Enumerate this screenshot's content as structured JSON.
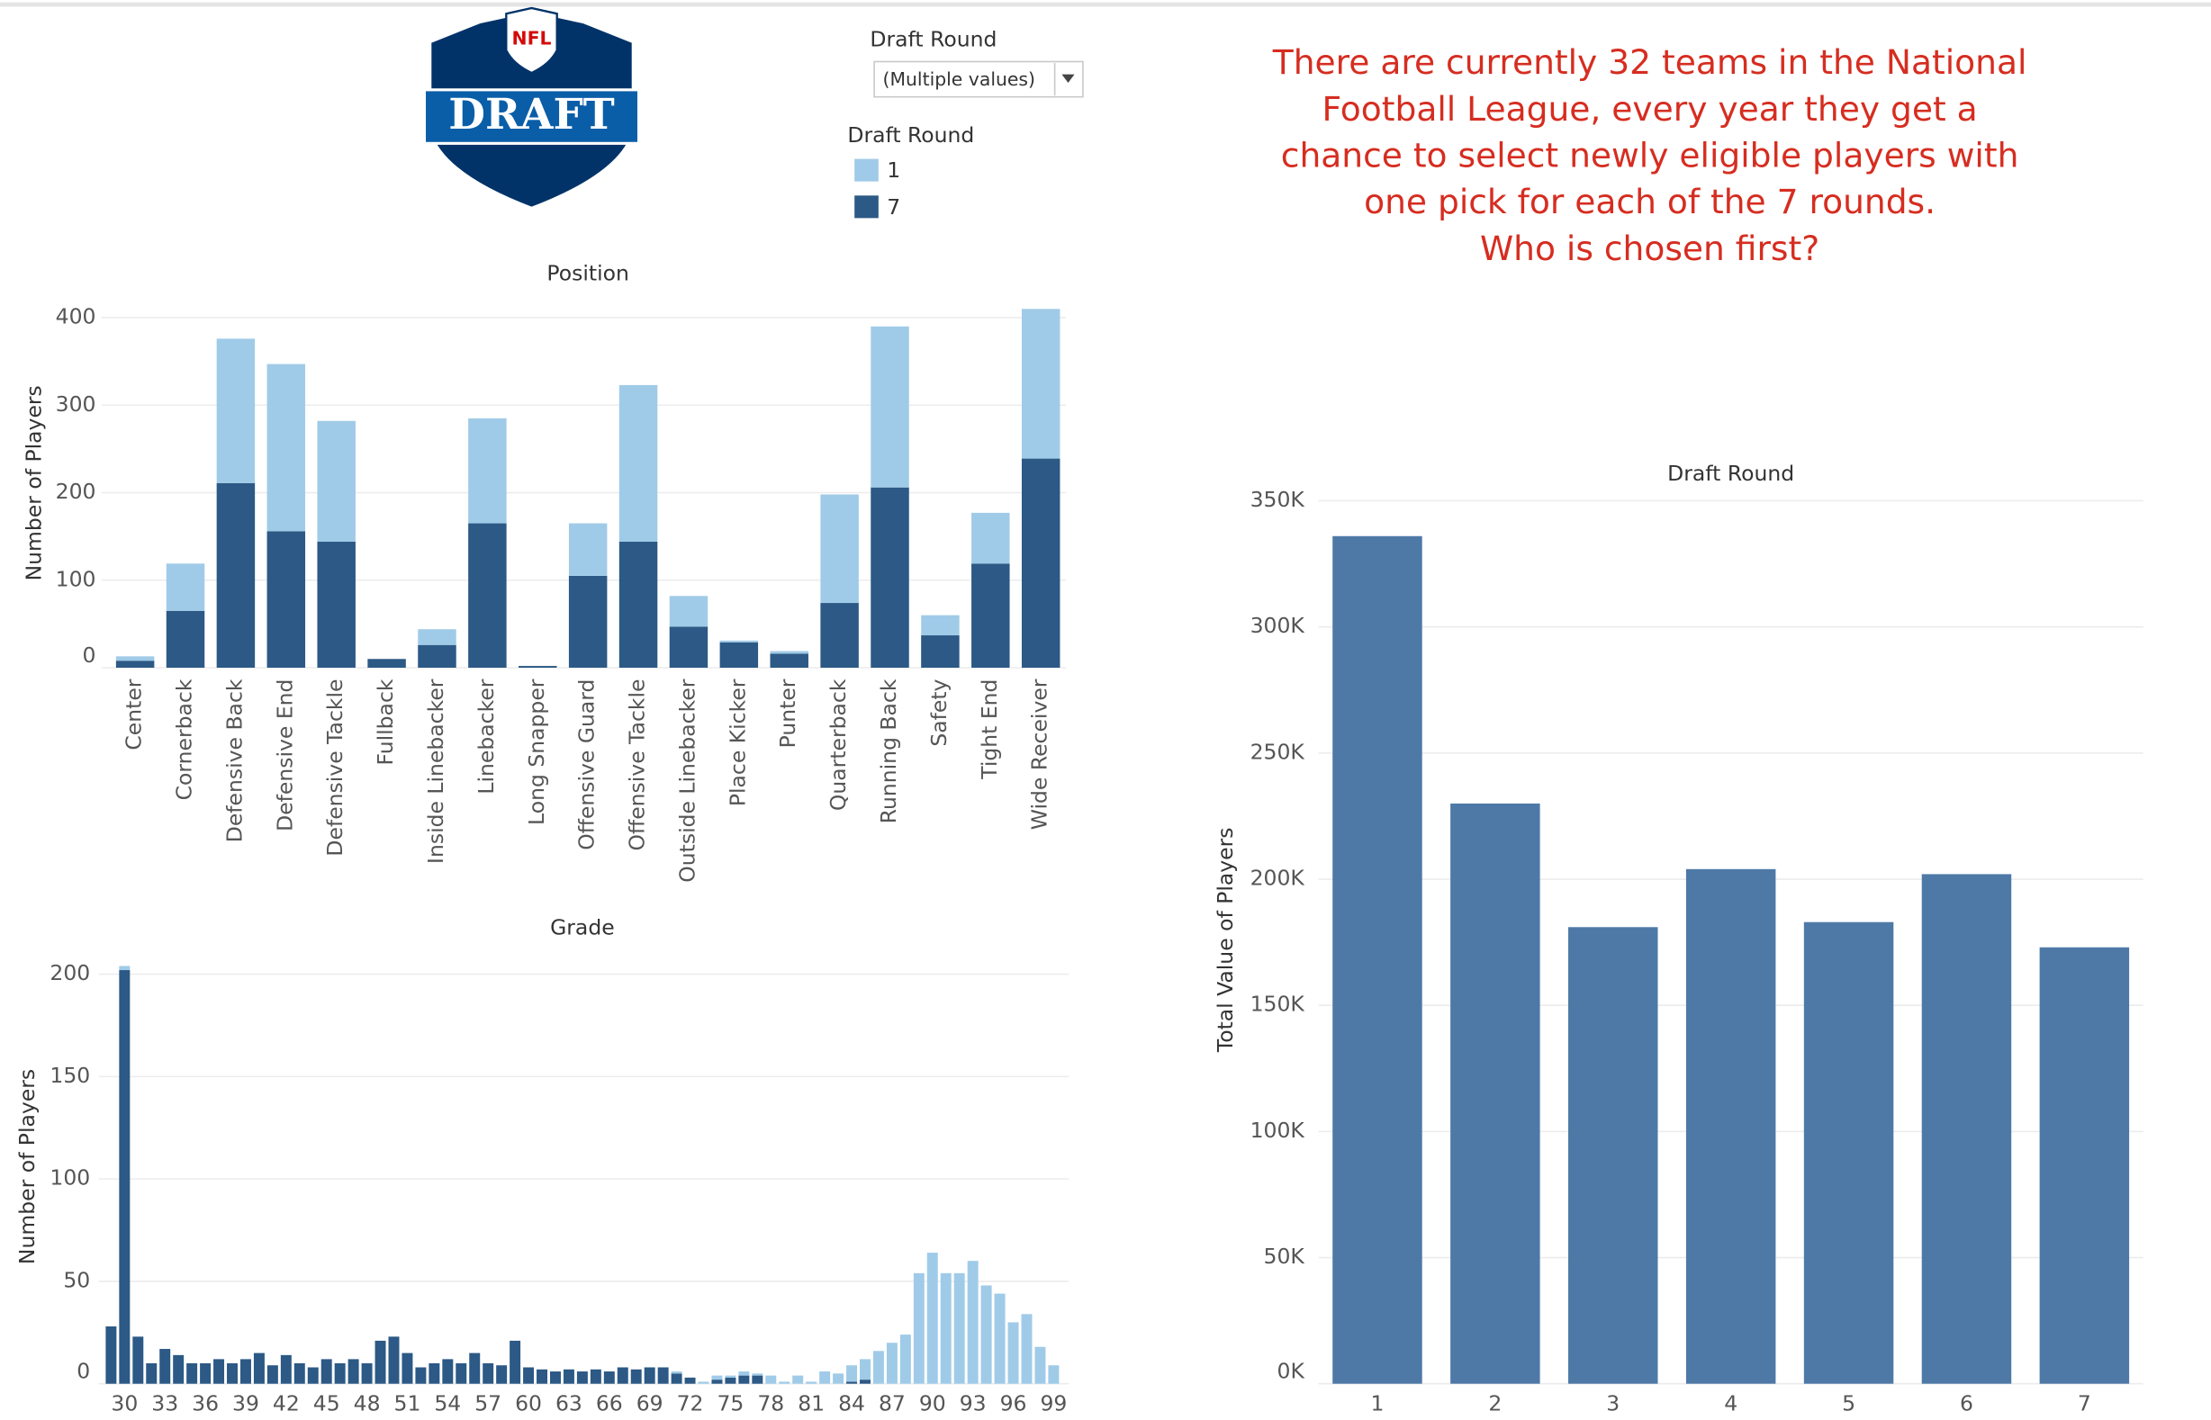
{
  "logo": {
    "top": "NFL",
    "main": "DRAFT"
  },
  "filter": {
    "title": "Draft Round",
    "value": "(Multiple values)"
  },
  "legend": {
    "title": "Draft Round"
  },
  "annotation": [
    "There are currently 32 teams in the National",
    "Football League, every year they get a",
    "chance to select newly eligible players with",
    "one pick for each of the 7 rounds.",
    "Who is chosen first?"
  ],
  "chart_data": [
    {
      "type": "bar",
      "stacked": true,
      "title": "Position",
      "y_label": "Number of Players",
      "categories": [
        "Center",
        "Cornerback",
        "Defensive Back",
        "Defensive End",
        "Defensive Tackle",
        "Fullback",
        "Inside Linebacker",
        "Linebacker",
        "Long Snapper",
        "Offensive Guard",
        "Offensive Tackle",
        "Outside Linebacker",
        "Place Kicker",
        "Punter",
        "Quarterback",
        "Running Back",
        "Safety",
        "Tight End",
        "Wide Receiver"
      ],
      "series": [
        {
          "name": "7",
          "color": "#2c5985",
          "values": [
            8,
            65,
            211,
            156,
            144,
            10,
            26,
            165,
            2,
            105,
            144,
            47,
            29,
            16,
            74,
            206,
            37,
            119,
            239
          ]
        },
        {
          "name": "1",
          "color": "#a0cbe8",
          "values": [
            5,
            54,
            165,
            191,
            138,
            0,
            18,
            120,
            0,
            60,
            179,
            35,
            2,
            3,
            124,
            184,
            23,
            58,
            171
          ]
        }
      ],
      "ylim": [
        0,
        422
      ],
      "yticks": [
        0,
        100,
        200,
        300,
        400
      ],
      "grid": true
    },
    {
      "type": "bar",
      "stacked": true,
      "title": "Grade",
      "y_label": "Number of Players",
      "x": [
        29,
        30,
        31,
        32,
        33,
        34,
        35,
        36,
        37,
        38,
        39,
        40,
        41,
        42,
        43,
        44,
        45,
        46,
        47,
        48,
        49,
        50,
        51,
        52,
        53,
        54,
        55,
        56,
        57,
        58,
        59,
        60,
        61,
        62,
        63,
        64,
        65,
        66,
        67,
        68,
        69,
        70,
        71,
        72,
        73,
        74,
        75,
        76,
        77,
        78,
        79,
        80,
        81,
        82,
        83,
        84,
        85,
        86,
        87,
        88,
        89,
        90,
        91,
        92,
        93,
        94,
        95,
        96,
        97,
        98,
        99
      ],
      "series": [
        {
          "name": "7",
          "color": "#2c5985",
          "values": [
            28,
            202,
            23,
            10,
            17,
            14,
            10,
            10,
            12,
            10,
            12,
            15,
            9,
            14,
            10,
            8,
            12,
            10,
            12,
            10,
            21,
            23,
            15,
            8,
            10,
            12,
            10,
            15,
            10,
            9,
            21,
            8,
            7,
            6,
            7,
            6,
            7,
            6,
            8,
            7,
            8,
            8,
            5,
            3,
            0,
            2,
            3,
            4,
            4,
            0,
            0,
            0,
            0,
            0,
            0,
            1,
            2,
            0,
            0,
            0,
            0,
            0,
            0,
            0,
            0,
            0,
            0,
            0,
            0,
            0,
            0
          ]
        },
        {
          "name": "1",
          "color": "#a0cbe8",
          "values": [
            0,
            2,
            0,
            0,
            0,
            0,
            0,
            0,
            0,
            0,
            0,
            0,
            0,
            0,
            0,
            0,
            0,
            0,
            0,
            0,
            0,
            0,
            0,
            0,
            0,
            0,
            0,
            0,
            0,
            0,
            0,
            0,
            0,
            0,
            0,
            0,
            0,
            0,
            0,
            0,
            0,
            0,
            1,
            0,
            1,
            2,
            1,
            2,
            1,
            4,
            1,
            4,
            1,
            6,
            5,
            8,
            10,
            16,
            20,
            24,
            54,
            64,
            54,
            54,
            60,
            48,
            44,
            30,
            34,
            18,
            9
          ]
        }
      ],
      "xlim": [
        28.5,
        99.5
      ],
      "xticks": [
        30,
        33,
        36,
        39,
        42,
        45,
        48,
        51,
        54,
        57,
        60,
        63,
        66,
        69,
        72,
        75,
        78,
        81,
        84,
        87,
        90,
        93,
        96,
        99
      ],
      "ylim": [
        0,
        212
      ],
      "yticks": [
        0,
        50,
        100,
        150,
        200
      ],
      "grid": true
    },
    {
      "type": "bar",
      "title": "Draft Round",
      "y_label": "Total Value of Players",
      "categories": [
        "1",
        "2",
        "3",
        "4",
        "5",
        "6",
        "7"
      ],
      "values": [
        336000,
        230000,
        181000,
        204000,
        183000,
        202000,
        173000
      ],
      "color": "#4e79a7",
      "ylim": [
        0,
        352000
      ],
      "yticks": [
        {
          "value": 0,
          "label": "0K"
        },
        {
          "value": 50000,
          "label": "50K"
        },
        {
          "value": 100000,
          "label": "100K"
        },
        {
          "value": 150000,
          "label": "150K"
        },
        {
          "value": 200000,
          "label": "200K"
        },
        {
          "value": 250000,
          "label": "250K"
        },
        {
          "value": 300000,
          "label": "300K"
        },
        {
          "value": 350000,
          "label": "350K"
        }
      ],
      "grid": true
    }
  ]
}
